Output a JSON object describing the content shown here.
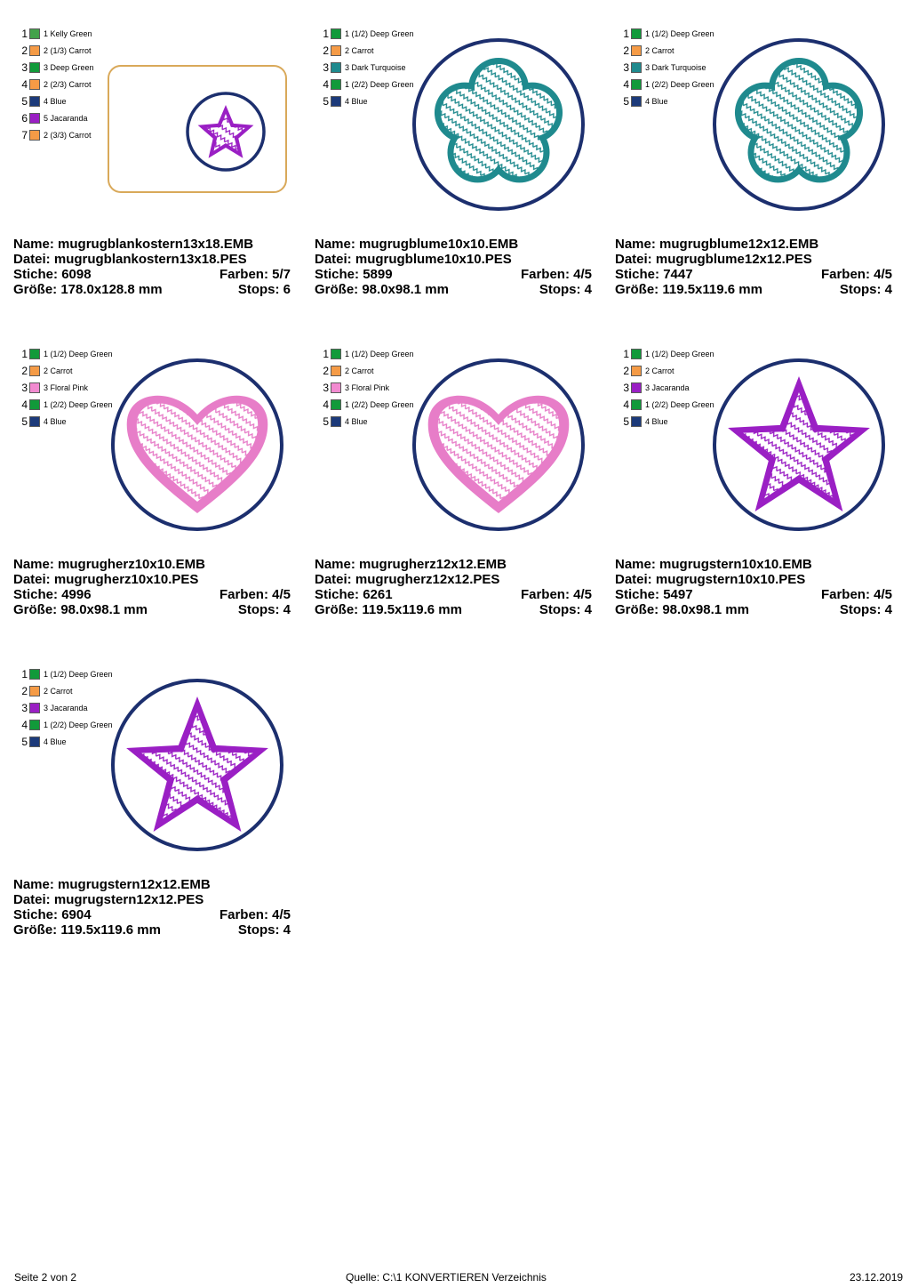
{
  "labels": {
    "name": "Name:",
    "datei": "Datei:",
    "stiche": "Stiche:",
    "farben": "Farben:",
    "groesse": "Größe:",
    "stops": "Stops:"
  },
  "cards": [
    {
      "name": "mugrugblankostern13x18.EMB",
      "datei": "mugrugblankostern13x18.PES",
      "stiche": "6098",
      "farben": "5/7",
      "groesse": "178.0x128.8 mm",
      "stops": "6",
      "shape": "blank-star",
      "shape_color": "#9a1fc4",
      "legend": [
        {
          "num": "1",
          "color": "#43a24a",
          "label": "1 Kelly Green"
        },
        {
          "num": "2",
          "color": "#f59b46",
          "label": "2 (1/3) Carrot"
        },
        {
          "num": "3",
          "color": "#119a3a",
          "label": "3 Deep Green"
        },
        {
          "num": "4",
          "color": "#f59b46",
          "label": "2 (2/3) Carrot"
        },
        {
          "num": "5",
          "color": "#1c3a7a",
          "label": "4 Blue"
        },
        {
          "num": "6",
          "color": "#9a1fc4",
          "label": "5 Jacaranda"
        },
        {
          "num": "7",
          "color": "#f59b46",
          "label": "2 (3/3) Carrot"
        }
      ]
    },
    {
      "name": "mugrugblume10x10.EMB",
      "datei": "mugrugblume10x10.PES",
      "stiche": "5899",
      "farben": "4/5",
      "groesse": "98.0x98.1 mm",
      "stops": "4",
      "shape": "flower",
      "shape_color": "#1f8a8e",
      "legend": [
        {
          "num": "1",
          "color": "#119a3a",
          "label": "1 (1/2) Deep Green"
        },
        {
          "num": "2",
          "color": "#f59b46",
          "label": "2 Carrot"
        },
        {
          "num": "3",
          "color": "#1f8a8e",
          "label": "3 Dark Turquoise"
        },
        {
          "num": "4",
          "color": "#119a3a",
          "label": "1 (2/2) Deep Green"
        },
        {
          "num": "5",
          "color": "#1c3a7a",
          "label": "4 Blue"
        }
      ]
    },
    {
      "name": "mugrugblume12x12.EMB",
      "datei": "mugrugblume12x12.PES",
      "stiche": "7447",
      "farben": "4/5",
      "groesse": "119.5x119.6 mm",
      "stops": "4",
      "shape": "flower",
      "shape_color": "#1f8a8e",
      "legend": [
        {
          "num": "1",
          "color": "#119a3a",
          "label": "1 (1/2) Deep Green"
        },
        {
          "num": "2",
          "color": "#f59b46",
          "label": "2 Carrot"
        },
        {
          "num": "3",
          "color": "#1f8a8e",
          "label": "3 Dark Turquoise"
        },
        {
          "num": "4",
          "color": "#119a3a",
          "label": "1 (2/2) Deep Green"
        },
        {
          "num": "5",
          "color": "#1c3a7a",
          "label": "4 Blue"
        }
      ]
    },
    {
      "name": "mugrugherz10x10.EMB",
      "datei": "mugrugherz10x10.PES",
      "stiche": "4996",
      "farben": "4/5",
      "groesse": "98.0x98.1 mm",
      "stops": "4",
      "shape": "heart",
      "shape_color": "#e77dc8",
      "legend": [
        {
          "num": "1",
          "color": "#119a3a",
          "label": "1 (1/2) Deep Green"
        },
        {
          "num": "2",
          "color": "#f59b46",
          "label": "2 Carrot"
        },
        {
          "num": "3",
          "color": "#f28ad0",
          "label": "3 Floral Pink"
        },
        {
          "num": "4",
          "color": "#119a3a",
          "label": "1 (2/2) Deep Green"
        },
        {
          "num": "5",
          "color": "#1c3a7a",
          "label": "4 Blue"
        }
      ]
    },
    {
      "name": "mugrugherz12x12.EMB",
      "datei": "mugrugherz12x12.PES",
      "stiche": "6261",
      "farben": "4/5",
      "groesse": "119.5x119.6 mm",
      "stops": "4",
      "shape": "heart",
      "shape_color": "#e77dc8",
      "legend": [
        {
          "num": "1",
          "color": "#119a3a",
          "label": "1 (1/2) Deep Green"
        },
        {
          "num": "2",
          "color": "#f59b46",
          "label": "2 Carrot"
        },
        {
          "num": "3",
          "color": "#f28ad0",
          "label": "3 Floral Pink"
        },
        {
          "num": "4",
          "color": "#119a3a",
          "label": "1 (2/2) Deep Green"
        },
        {
          "num": "5",
          "color": "#1c3a7a",
          "label": "4 Blue"
        }
      ]
    },
    {
      "name": "mugrugstern10x10.EMB",
      "datei": "mugrugstern10x10.PES",
      "stiche": "5497",
      "farben": "4/5",
      "groesse": "98.0x98.1 mm",
      "stops": "4",
      "shape": "star",
      "shape_color": "#9a1fc4",
      "legend": [
        {
          "num": "1",
          "color": "#119a3a",
          "label": "1 (1/2) Deep Green"
        },
        {
          "num": "2",
          "color": "#f59b46",
          "label": "2 Carrot"
        },
        {
          "num": "3",
          "color": "#9a1fc4",
          "label": "3 Jacaranda"
        },
        {
          "num": "4",
          "color": "#119a3a",
          "label": "1 (2/2) Deep Green"
        },
        {
          "num": "5",
          "color": "#1c3a7a",
          "label": "4 Blue"
        }
      ]
    },
    {
      "name": "mugrugstern12x12.EMB",
      "datei": "mugrugstern12x12.PES",
      "stiche": "6904",
      "farben": "4/5",
      "groesse": "119.5x119.6 mm",
      "stops": "4",
      "shape": "star",
      "shape_color": "#9a1fc4",
      "legend": [
        {
          "num": "1",
          "color": "#119a3a",
          "label": "1 (1/2) Deep Green"
        },
        {
          "num": "2",
          "color": "#f59b46",
          "label": "2 Carrot"
        },
        {
          "num": "3",
          "color": "#9a1fc4",
          "label": "3 Jacaranda"
        },
        {
          "num": "4",
          "color": "#119a3a",
          "label": "1 (2/2) Deep Green"
        },
        {
          "num": "5",
          "color": "#1c3a7a",
          "label": "4 Blue"
        }
      ]
    }
  ],
  "colors": {
    "ring": "#1c2f6e",
    "frame": "#d9a95a"
  },
  "footer": {
    "page": "Seite 2 von 2",
    "source": "Quelle: C:\\1 KONVERTIEREN Verzeichnis",
    "date": "23.12.2019"
  }
}
